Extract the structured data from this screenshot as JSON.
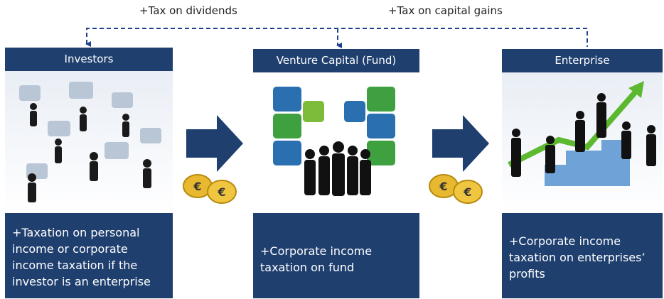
{
  "top_labels": {
    "dividends": "+Tax on dividends",
    "capital_gains": "+Tax on capital gains"
  },
  "columns": [
    {
      "title": "Investors",
      "description_lines": [
        "+Taxation on personal",
        "income or corporate",
        "income taxation if the",
        "investor is an enterprise"
      ]
    },
    {
      "title": "Venture Capital (Fund)",
      "description_lines": [
        "+Corporate income",
        "taxation on fund"
      ]
    },
    {
      "title": "Enterprise",
      "description_lines": [
        "+Corporate income",
        "taxation on enterprises’",
        "profits"
      ]
    }
  ]
}
